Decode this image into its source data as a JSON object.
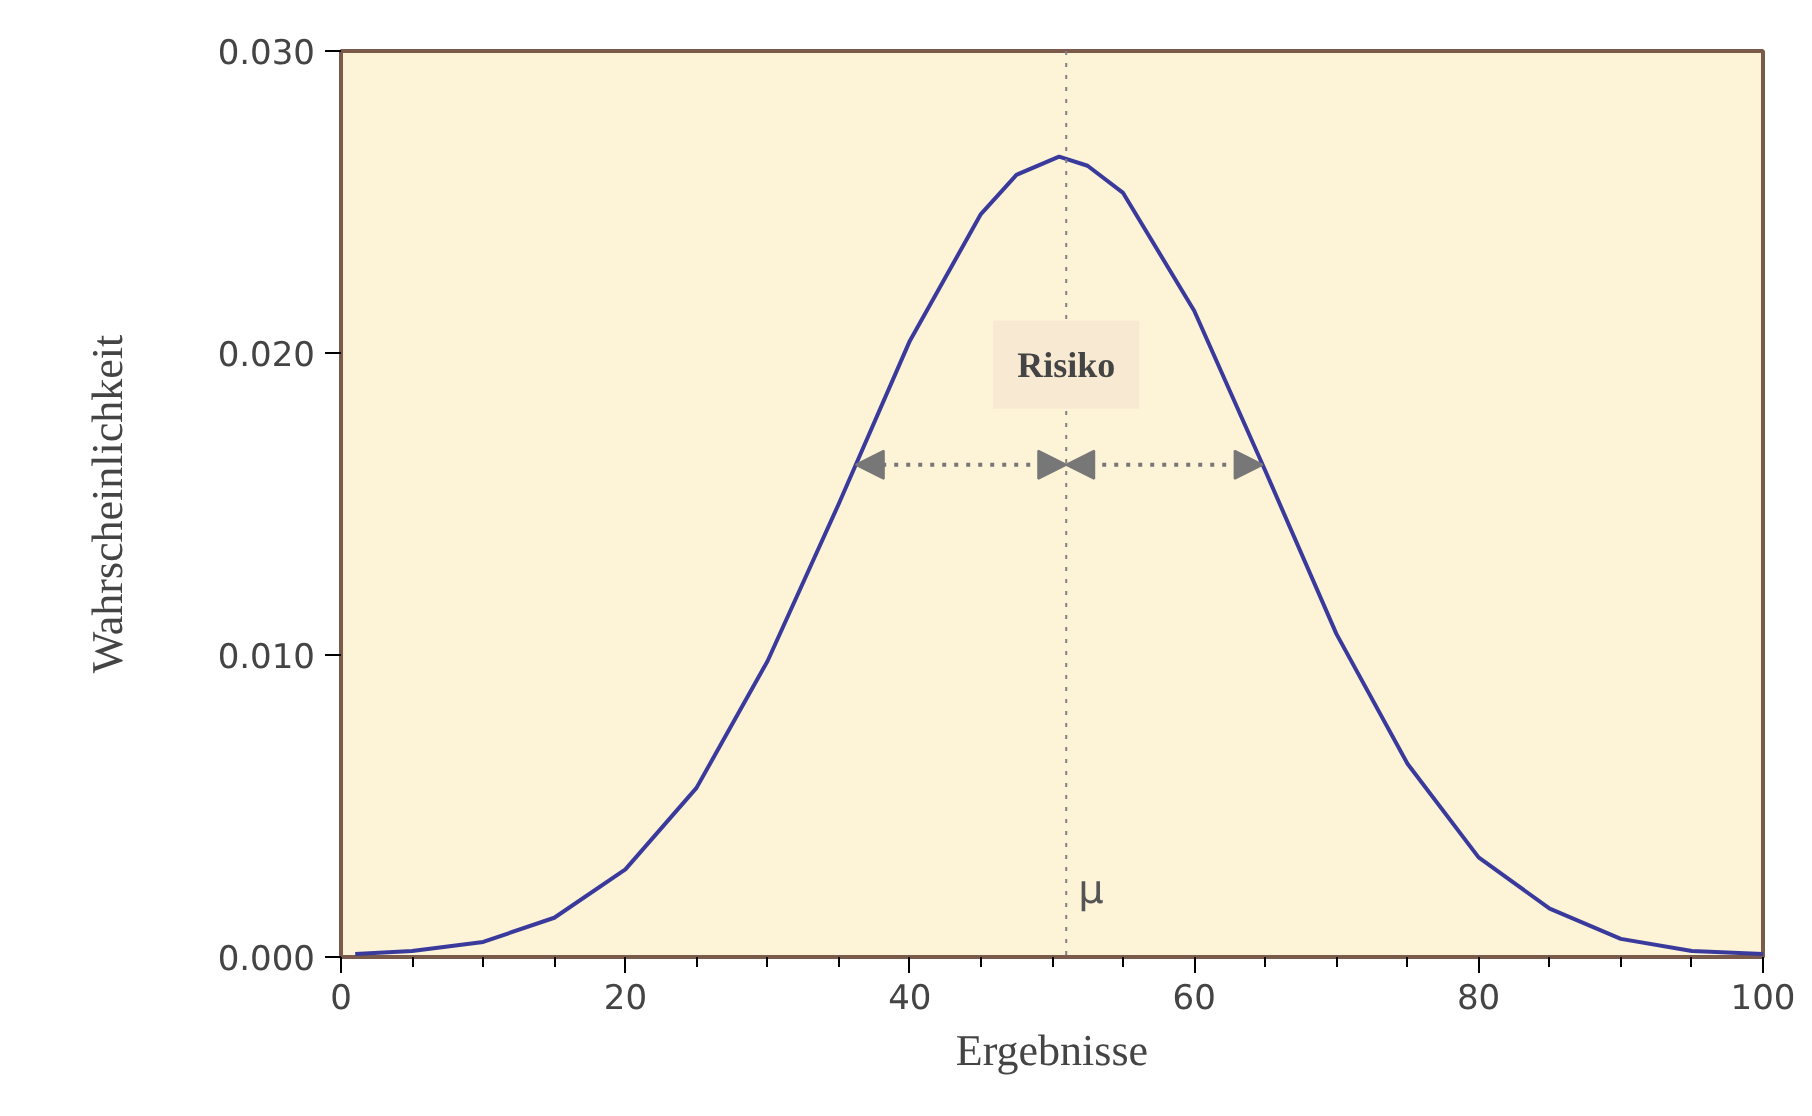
{
  "chart_data": {
    "type": "line",
    "xlabel": "Ergebnisse",
    "ylabel": "Wahrscheinlichkeit",
    "x": [
      1,
      5,
      10,
      15,
      20,
      25,
      30,
      35,
      40,
      45,
      47.5,
      50.5,
      52.5,
      55,
      60,
      65,
      70,
      75,
      80,
      85,
      90,
      95,
      100
    ],
    "series": [
      {
        "color": "#3a3a9c",
        "values": [
          0.0001,
          0.0002,
          0.0005,
          0.0013,
          0.0029,
          0.0056,
          0.0098,
          0.015,
          0.0204,
          0.0246,
          0.0259,
          0.0265,
          0.0262,
          0.0253,
          0.0214,
          0.0161,
          0.0107,
          0.0064,
          0.0033,
          0.0016,
          0.0006,
          0.0002,
          0.0001
        ]
      }
    ],
    "xlim": [
      0,
      100
    ],
    "xticks": [
      0,
      20,
      40,
      60,
      80,
      100
    ],
    "ylim": [
      0,
      0.03
    ],
    "yticks": [
      {
        "value": 0,
        "label": "0.000"
      },
      {
        "value": 0.01,
        "label": "0.010"
      },
      {
        "value": 0.02,
        "label": "0.020"
      },
      {
        "value": 0.03,
        "label": "0.030"
      }
    ],
    "ref_lines": [
      {
        "axis": "x",
        "value": 51,
        "label": "μ",
        "color": "#808080",
        "line_style": "dotted"
      }
    ],
    "annotations": [
      {
        "text": "Risiko",
        "x": 51,
        "y": 0.0163
      }
    ],
    "grid": false,
    "marker": "none",
    "line_style": "solid"
  }
}
